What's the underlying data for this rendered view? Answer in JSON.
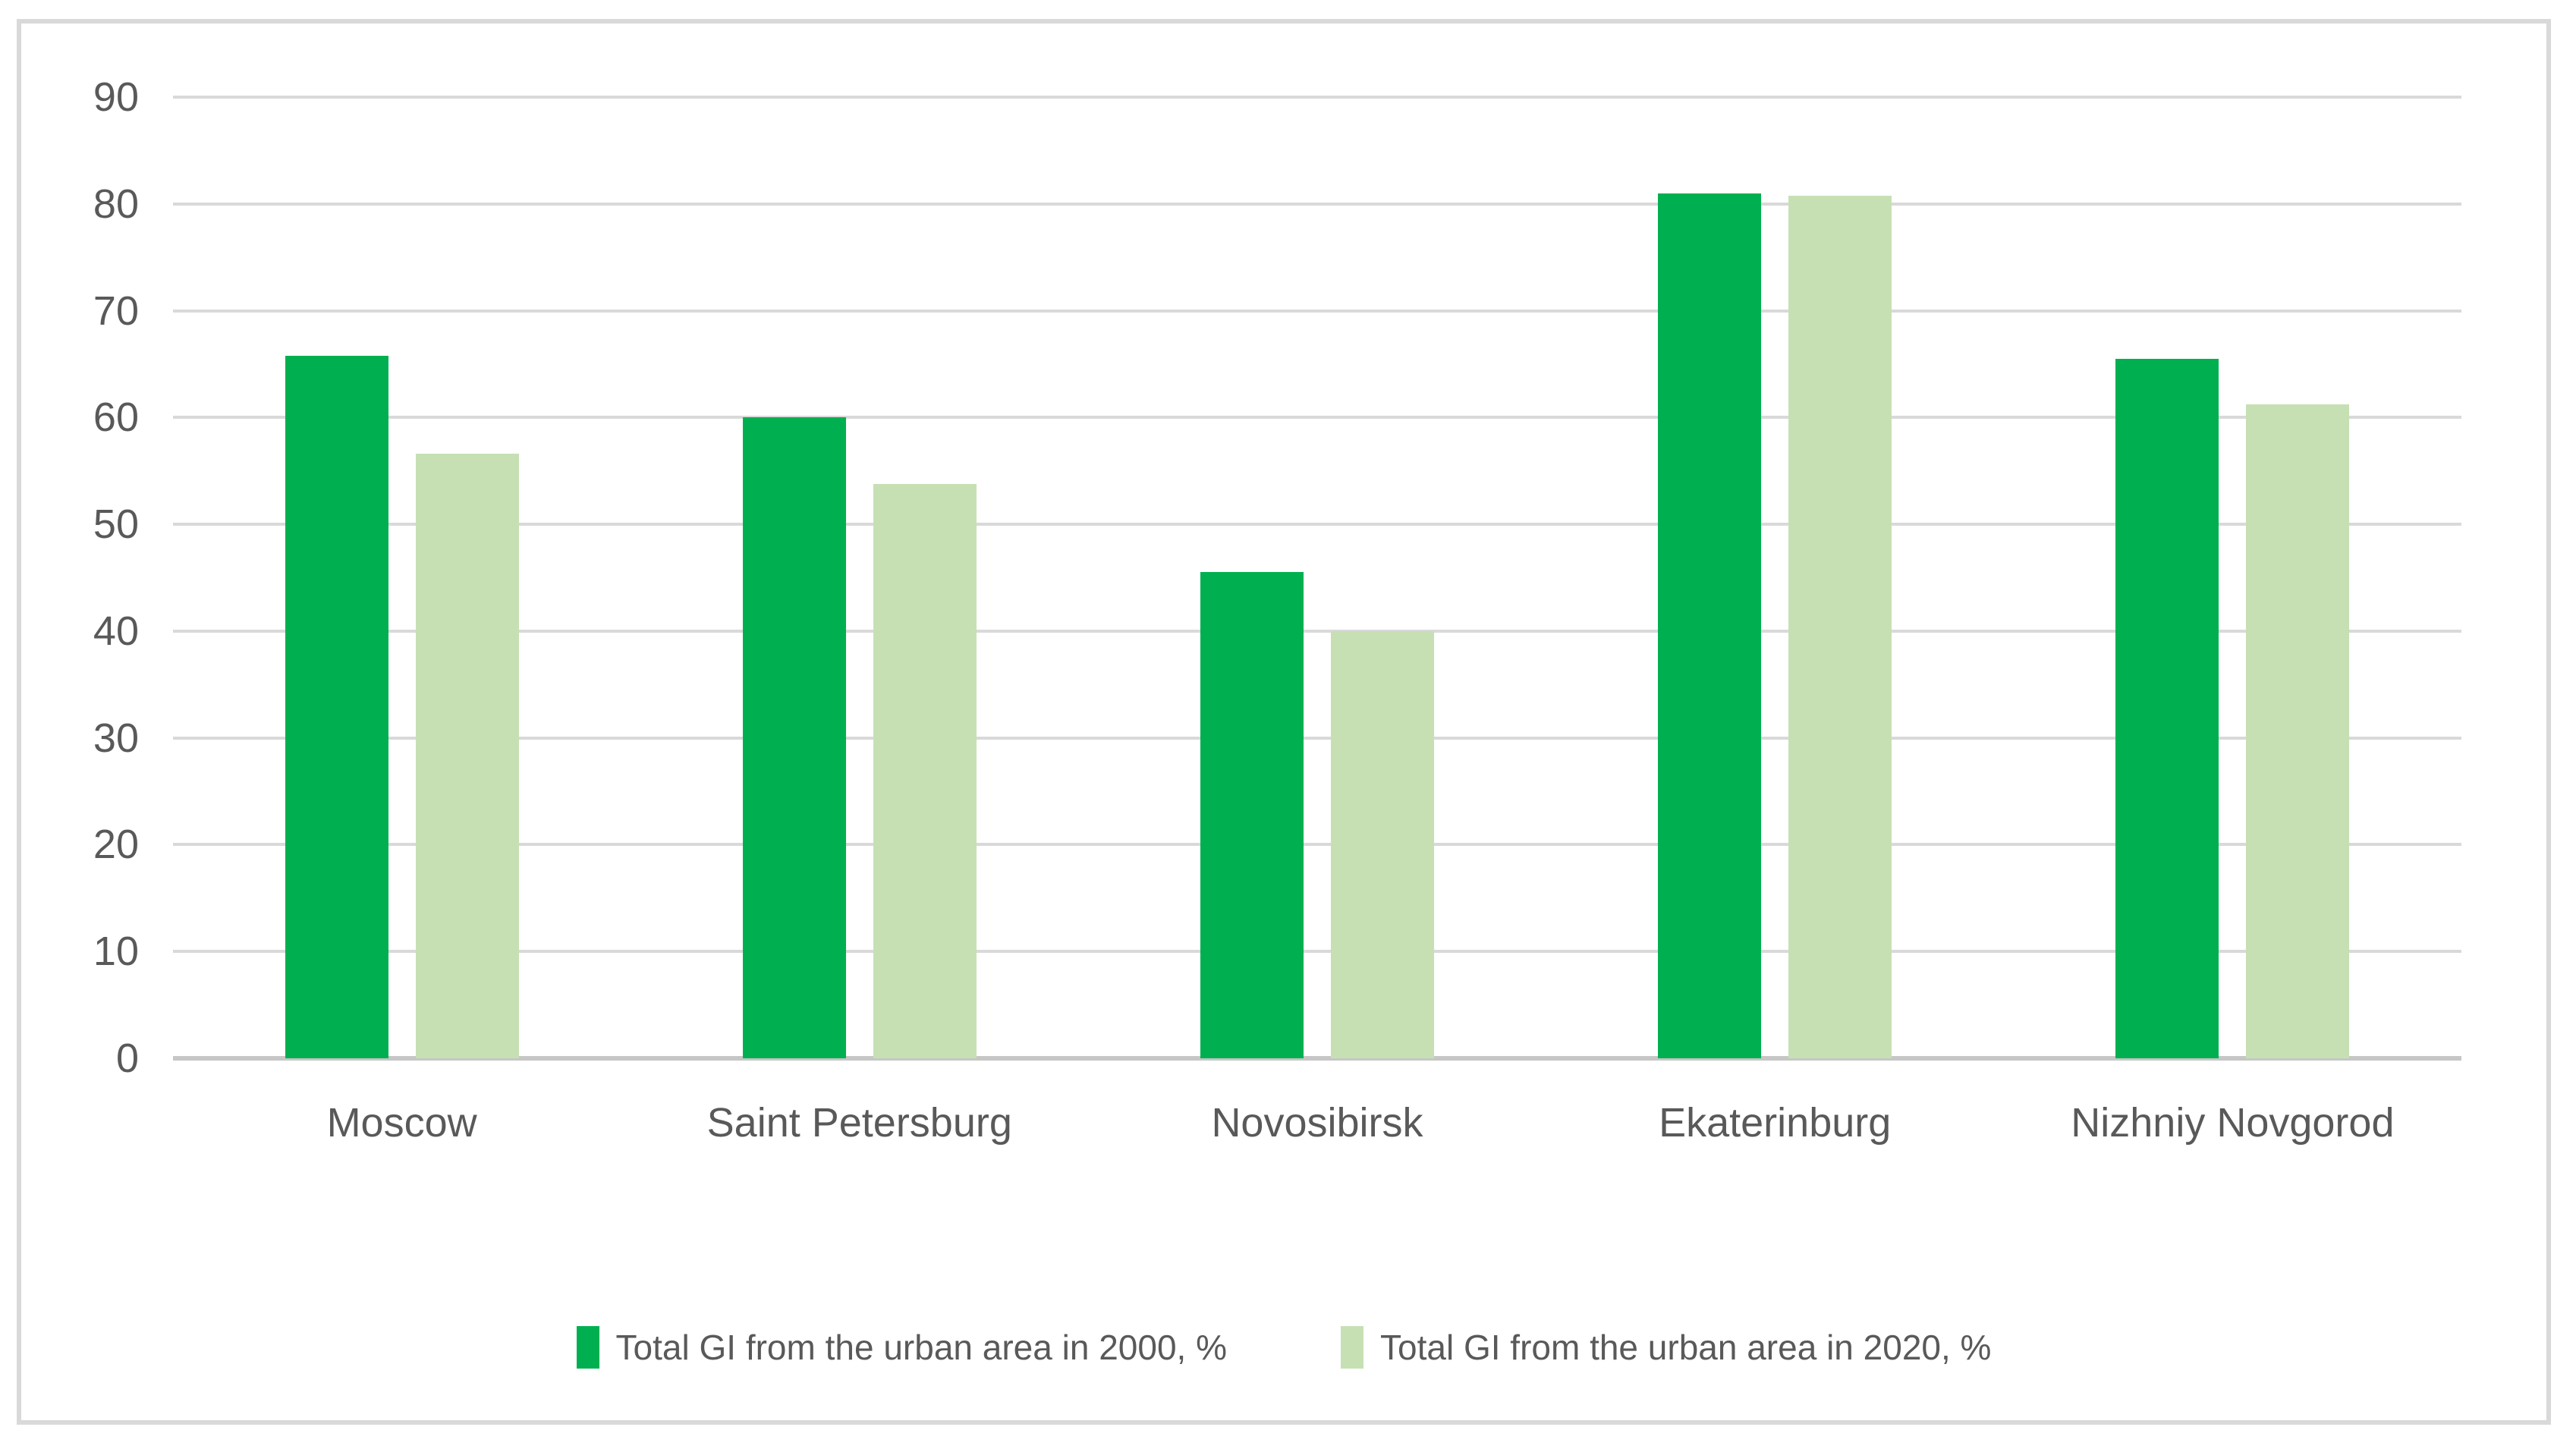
{
  "chart_data": {
    "type": "bar",
    "title": "",
    "categories": [
      "Moscow",
      "Saint Petersburg",
      "Novosibirsk",
      "Ekaterinburg",
      "Nizhniy Novgorod"
    ],
    "series": [
      {
        "name": "Total GI from the urban area in 2000, %",
        "color": "#00B050",
        "values": [
          65.8,
          60.0,
          45.5,
          81.0,
          65.5
        ]
      },
      {
        "name": "Total GI from the urban area in 2020, %",
        "color": "#C6E0B4",
        "values": [
          56.6,
          53.8,
          40.0,
          80.8,
          61.2
        ]
      }
    ],
    "y_axis": {
      "min": 0,
      "max": 90,
      "tick_step": 10,
      "ticks": [
        0,
        10,
        20,
        30,
        40,
        50,
        60,
        70,
        80,
        90
      ]
    },
    "x_axis_label": "",
    "y_axis_label": "",
    "grid": true,
    "legend_position": "bottom",
    "colors": {
      "gridline": "#D9D9D9",
      "axis_line": "#C6C6C6",
      "label_text": "#595959",
      "frame_border": "#D9D9D9",
      "background": "#FFFFFF"
    }
  }
}
